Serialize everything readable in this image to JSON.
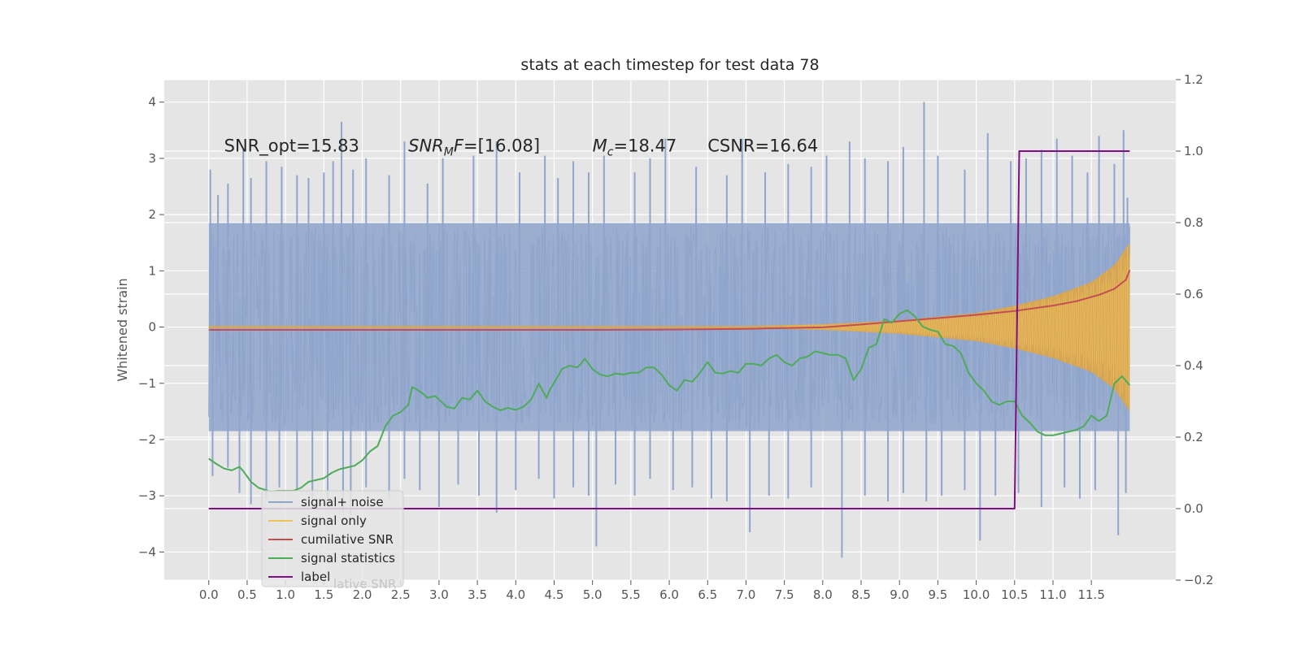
{
  "chart_data": {
    "type": "line",
    "title": "stats at each timestep for test data 78",
    "xlabel": "",
    "ylabel": "Whitened strain",
    "xlim": [
      -0.58,
      12.6
    ],
    "ylim": [
      -4.5,
      4.4
    ],
    "y2lim": [
      -0.2,
      1.2
    ],
    "grid": true,
    "x_ticks": [
      "0.0",
      "0.5",
      "1.0",
      "1.5",
      "2.0",
      "2.5",
      "3.0",
      "3.5",
      "4.0",
      "4.5",
      "5.0",
      "5.5",
      "6.0",
      "6.5",
      "7.0",
      "7.5",
      "8.0",
      "8.5",
      "9.0",
      "9.5",
      "10.0",
      "10.5",
      "11.0",
      "11.5"
    ],
    "y_ticks": [
      "4",
      "3",
      "2",
      "1",
      "0",
      "−1",
      "−2",
      "−3",
      "−4"
    ],
    "y2_ticks": [
      "1.2",
      "1.0",
      "0.8",
      "0.6",
      "0.4",
      "0.2",
      "0.0",
      "−0.2"
    ],
    "annotations": [
      {
        "parts": [
          {
            "t": "SNR_opt=15.83"
          }
        ],
        "x": 0.2,
        "y": 3.22
      },
      {
        "parts": [
          {
            "t": "SNR",
            "i": true
          },
          {
            "t": "M",
            "i": true,
            "sub": true
          },
          {
            "t": "F",
            "i": true
          },
          {
            "t": "=[16.08]"
          }
        ],
        "x": 2.6,
        "y": 3.22
      },
      {
        "parts": [
          {
            "t": "M",
            "i": true
          },
          {
            "t": "c",
            "i": true,
            "sub": true
          },
          {
            "t": "=18.47"
          }
        ],
        "x": 5.0,
        "y": 3.22
      },
      {
        "parts": [
          {
            "t": "CSNR=16.64"
          }
        ],
        "x": 6.5,
        "y": 3.22
      }
    ],
    "legend": {
      "placement": "lower-left",
      "entries": [
        {
          "label": "signal+ noise",
          "color": "#8fa5cb"
        },
        {
          "label": "signal only",
          "color": "#f0c35a"
        },
        {
          "label": "cumilative SNR",
          "color": "#c44e52"
        },
        {
          "label": "signal statistics",
          "color": "#4dab5a"
        },
        {
          "label": "label",
          "color": "#7d0f82"
        }
      ],
      "shadow_text": "lative SNR"
    },
    "series": [
      {
        "name": "signal+ noise",
        "axis": "left",
        "color": "#8fa5cb",
        "x_range": [
          0.0,
          12.0
        ],
        "envelope_upper": [
          [
            0.0,
            1.85
          ],
          [
            6.0,
            1.85
          ],
          [
            12.0,
            1.85
          ]
        ],
        "envelope_lower": [
          [
            0.0,
            -1.85
          ],
          [
            6.0,
            -1.85
          ],
          [
            12.0,
            -1.85
          ]
        ],
        "peaks_high": [
          [
            0.02,
            2.8
          ],
          [
            0.12,
            2.35
          ],
          [
            0.25,
            2.55
          ],
          [
            0.45,
            3.15
          ],
          [
            0.55,
            2.65
          ],
          [
            0.75,
            2.95
          ],
          [
            0.95,
            2.85
          ],
          [
            1.15,
            2.7
          ],
          [
            1.3,
            2.65
          ],
          [
            1.5,
            2.75
          ],
          [
            1.62,
            2.95
          ],
          [
            1.73,
            3.65
          ],
          [
            1.88,
            2.8
          ],
          [
            2.05,
            3.0
          ],
          [
            2.35,
            2.7
          ],
          [
            2.55,
            3.3
          ],
          [
            2.85,
            2.55
          ],
          [
            3.05,
            3.0
          ],
          [
            3.45,
            3.05
          ],
          [
            3.75,
            3.3
          ],
          [
            4.05,
            2.75
          ],
          [
            4.38,
            3.05
          ],
          [
            4.55,
            2.65
          ],
          [
            4.75,
            2.95
          ],
          [
            4.95,
            2.75
          ],
          [
            5.15,
            3.05
          ],
          [
            5.55,
            2.75
          ],
          [
            5.75,
            3.0
          ],
          [
            5.95,
            3.35
          ],
          [
            6.35,
            2.85
          ],
          [
            6.75,
            2.7
          ],
          [
            6.95,
            3.35
          ],
          [
            7.25,
            2.75
          ],
          [
            7.55,
            2.9
          ],
          [
            7.85,
            2.85
          ],
          [
            8.05,
            3.05
          ],
          [
            8.35,
            3.3
          ],
          [
            8.55,
            3.0
          ],
          [
            8.85,
            2.95
          ],
          [
            9.05,
            3.2
          ],
          [
            9.32,
            4.0
          ],
          [
            9.5,
            3.05
          ],
          [
            9.85,
            2.8
          ],
          [
            10.15,
            3.45
          ],
          [
            10.45,
            2.95
          ],
          [
            10.65,
            3.0
          ],
          [
            10.85,
            3.15
          ],
          [
            11.05,
            3.35
          ],
          [
            11.25,
            3.05
          ],
          [
            11.45,
            2.75
          ],
          [
            11.6,
            3.4
          ],
          [
            11.8,
            2.9
          ],
          [
            11.92,
            3.5
          ],
          [
            11.97,
            2.3
          ]
        ],
        "peaks_low": [
          [
            0.05,
            -2.65
          ],
          [
            0.25,
            -2.5
          ],
          [
            0.4,
            -2.95
          ],
          [
            0.55,
            -3.15
          ],
          [
            0.75,
            -3.05
          ],
          [
            0.92,
            -2.85
          ],
          [
            1.15,
            -2.9
          ],
          [
            1.35,
            -3.05
          ],
          [
            1.55,
            -3.25
          ],
          [
            1.75,
            -3.3
          ],
          [
            1.85,
            -3.35
          ],
          [
            2.05,
            -2.85
          ],
          [
            2.35,
            -3.05
          ],
          [
            2.55,
            -2.7
          ],
          [
            2.75,
            -2.9
          ],
          [
            3.0,
            -3.2
          ],
          [
            3.25,
            -2.8
          ],
          [
            3.52,
            -3.0
          ],
          [
            3.75,
            -3.3
          ],
          [
            4.0,
            -2.9
          ],
          [
            4.3,
            -2.7
          ],
          [
            4.5,
            -3.05
          ],
          [
            4.75,
            -2.85
          ],
          [
            4.95,
            -3.0
          ],
          [
            5.05,
            -3.9
          ],
          [
            5.3,
            -2.8
          ],
          [
            5.55,
            -3.0
          ],
          [
            5.75,
            -2.7
          ],
          [
            6.05,
            -2.9
          ],
          [
            6.3,
            -2.85
          ],
          [
            6.55,
            -3.05
          ],
          [
            6.75,
            -3.1
          ],
          [
            7.05,
            -3.65
          ],
          [
            7.3,
            -3.0
          ],
          [
            7.55,
            -3.05
          ],
          [
            7.85,
            -2.85
          ],
          [
            8.25,
            -4.1
          ],
          [
            8.55,
            -3.0
          ],
          [
            8.85,
            -3.1
          ],
          [
            9.05,
            -2.95
          ],
          [
            9.35,
            -3.1
          ],
          [
            9.55,
            -3.0
          ],
          [
            9.85,
            -2.9
          ],
          [
            10.05,
            -3.8
          ],
          [
            10.25,
            -3.0
          ],
          [
            10.55,
            -2.95
          ],
          [
            10.85,
            -3.2
          ],
          [
            11.15,
            -2.85
          ],
          [
            11.35,
            -3.05
          ],
          [
            11.55,
            -2.9
          ],
          [
            11.85,
            -3.7
          ],
          [
            11.95,
            -2.95
          ]
        ]
      },
      {
        "name": "signal only",
        "axis": "left",
        "color": "#f0c35a",
        "x_range": [
          0.0,
          12.0
        ],
        "amplitude": [
          [
            0.0,
            0.02
          ],
          [
            7.0,
            0.02
          ],
          [
            8.0,
            0.05
          ],
          [
            9.0,
            0.12
          ],
          [
            10.0,
            0.25
          ],
          [
            10.5,
            0.38
          ],
          [
            11.0,
            0.55
          ],
          [
            11.5,
            0.8
          ],
          [
            11.8,
            1.1
          ],
          [
            12.0,
            1.5
          ]
        ]
      },
      {
        "name": "cumilative SNR",
        "axis": "right",
        "color": "#c44e52",
        "points": [
          [
            0.0,
            0.5
          ],
          [
            1.0,
            0.5
          ],
          [
            2.0,
            0.5
          ],
          [
            3.0,
            0.5
          ],
          [
            4.0,
            0.5
          ],
          [
            5.0,
            0.5
          ],
          [
            6.0,
            0.501
          ],
          [
            7.0,
            0.503
          ],
          [
            7.5,
            0.505
          ],
          [
            8.0,
            0.507
          ],
          [
            8.5,
            0.515
          ],
          [
            9.0,
            0.524
          ],
          [
            9.5,
            0.533
          ],
          [
            10.0,
            0.542
          ],
          [
            10.5,
            0.553
          ],
          [
            11.0,
            0.568
          ],
          [
            11.3,
            0.58
          ],
          [
            11.6,
            0.598
          ],
          [
            11.8,
            0.615
          ],
          [
            11.95,
            0.64
          ],
          [
            12.0,
            0.667
          ]
        ]
      },
      {
        "name": "signal statistics",
        "axis": "right",
        "color": "#4dab5a",
        "points": [
          [
            0.0,
            0.14
          ],
          [
            0.1,
            0.125
          ],
          [
            0.2,
            0.112
          ],
          [
            0.3,
            0.107
          ],
          [
            0.4,
            0.117
          ],
          [
            0.45,
            0.105
          ],
          [
            0.55,
            0.075
          ],
          [
            0.65,
            0.058
          ],
          [
            0.7,
            0.055
          ],
          [
            0.8,
            0.048
          ],
          [
            0.9,
            0.05
          ],
          [
            1.0,
            0.05
          ],
          [
            1.1,
            0.05
          ],
          [
            1.2,
            0.058
          ],
          [
            1.3,
            0.075
          ],
          [
            1.4,
            0.08
          ],
          [
            1.5,
            0.085
          ],
          [
            1.6,
            0.1
          ],
          [
            1.7,
            0.11
          ],
          [
            1.8,
            0.115
          ],
          [
            1.9,
            0.12
          ],
          [
            2.0,
            0.135
          ],
          [
            2.1,
            0.16
          ],
          [
            2.2,
            0.175
          ],
          [
            2.3,
            0.23
          ],
          [
            2.4,
            0.26
          ],
          [
            2.5,
            0.27
          ],
          [
            2.6,
            0.29
          ],
          [
            2.65,
            0.34
          ],
          [
            2.7,
            0.335
          ],
          [
            2.8,
            0.32
          ],
          [
            2.85,
            0.31
          ],
          [
            2.95,
            0.315
          ],
          [
            3.0,
            0.305
          ],
          [
            3.1,
            0.285
          ],
          [
            3.2,
            0.28
          ],
          [
            3.3,
            0.31
          ],
          [
            3.4,
            0.305
          ],
          [
            3.5,
            0.33
          ],
          [
            3.6,
            0.3
          ],
          [
            3.7,
            0.285
          ],
          [
            3.8,
            0.275
          ],
          [
            3.9,
            0.282
          ],
          [
            4.0,
            0.276
          ],
          [
            4.1,
            0.285
          ],
          [
            4.2,
            0.305
          ],
          [
            4.3,
            0.35
          ],
          [
            4.4,
            0.31
          ],
          [
            4.45,
            0.335
          ],
          [
            4.55,
            0.37
          ],
          [
            4.6,
            0.39
          ],
          [
            4.7,
            0.4
          ],
          [
            4.8,
            0.395
          ],
          [
            4.85,
            0.405
          ],
          [
            4.9,
            0.42
          ],
          [
            5.0,
            0.39
          ],
          [
            5.1,
            0.375
          ],
          [
            5.2,
            0.37
          ],
          [
            5.3,
            0.378
          ],
          [
            5.4,
            0.375
          ],
          [
            5.5,
            0.38
          ],
          [
            5.6,
            0.38
          ],
          [
            5.7,
            0.395
          ],
          [
            5.8,
            0.395
          ],
          [
            5.9,
            0.375
          ],
          [
            6.0,
            0.345
          ],
          [
            6.1,
            0.33
          ],
          [
            6.2,
            0.36
          ],
          [
            6.3,
            0.355
          ],
          [
            6.4,
            0.38
          ],
          [
            6.5,
            0.41
          ],
          [
            6.6,
            0.38
          ],
          [
            6.7,
            0.378
          ],
          [
            6.8,
            0.385
          ],
          [
            6.9,
            0.38
          ],
          [
            7.0,
            0.405
          ],
          [
            7.1,
            0.405
          ],
          [
            7.2,
            0.4
          ],
          [
            7.3,
            0.42
          ],
          [
            7.4,
            0.43
          ],
          [
            7.5,
            0.41
          ],
          [
            7.6,
            0.4
          ],
          [
            7.7,
            0.42
          ],
          [
            7.8,
            0.425
          ],
          [
            7.9,
            0.44
          ],
          [
            8.0,
            0.435
          ],
          [
            8.1,
            0.43
          ],
          [
            8.2,
            0.43
          ],
          [
            8.3,
            0.42
          ],
          [
            8.4,
            0.36
          ],
          [
            8.5,
            0.39
          ],
          [
            8.6,
            0.45
          ],
          [
            8.7,
            0.46
          ],
          [
            8.8,
            0.53
          ],
          [
            8.9,
            0.52
          ],
          [
            9.0,
            0.545
          ],
          [
            9.1,
            0.555
          ],
          [
            9.2,
            0.538
          ],
          [
            9.3,
            0.51
          ],
          [
            9.4,
            0.5
          ],
          [
            9.5,
            0.495
          ],
          [
            9.6,
            0.46
          ],
          [
            9.7,
            0.455
          ],
          [
            9.8,
            0.435
          ],
          [
            9.9,
            0.38
          ],
          [
            10.0,
            0.35
          ],
          [
            10.1,
            0.33
          ],
          [
            10.2,
            0.3
          ],
          [
            10.3,
            0.29
          ],
          [
            10.4,
            0.3
          ],
          [
            10.5,
            0.3
          ],
          [
            10.6,
            0.26
          ],
          [
            10.7,
            0.24
          ],
          [
            10.8,
            0.215
          ],
          [
            10.9,
            0.205
          ],
          [
            11.0,
            0.205
          ],
          [
            11.1,
            0.21
          ],
          [
            11.2,
            0.215
          ],
          [
            11.3,
            0.22
          ],
          [
            11.4,
            0.23
          ],
          [
            11.5,
            0.26
          ],
          [
            11.6,
            0.245
          ],
          [
            11.7,
            0.26
          ],
          [
            11.8,
            0.35
          ],
          [
            11.9,
            0.37
          ],
          [
            12.0,
            0.345
          ]
        ]
      },
      {
        "name": "label",
        "axis": "right",
        "color": "#7d0f82",
        "points": [
          [
            0.0,
            0.0
          ],
          [
            10.5,
            0.0
          ],
          [
            10.56,
            1.0
          ],
          [
            12.0,
            1.0
          ]
        ]
      }
    ]
  }
}
